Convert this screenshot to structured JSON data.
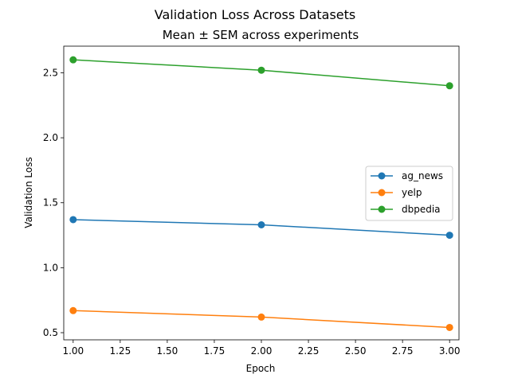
{
  "chart_data": {
    "type": "line",
    "title": "Validation Loss Across Datasets",
    "subtitle": "Mean ± SEM across experiments",
    "xlabel": "Epoch",
    "ylabel": "Validation Loss",
    "x": [
      1.0,
      2.0,
      3.0
    ],
    "xlim": [
      0.95,
      3.05
    ],
    "ylim": [
      0.445,
      2.705
    ],
    "xticks": [
      1.0,
      1.25,
      1.5,
      1.75,
      2.0,
      2.25,
      2.5,
      2.75,
      3.0
    ],
    "xtick_labels": [
      "1.00",
      "1.25",
      "1.50",
      "1.75",
      "2.00",
      "2.25",
      "2.50",
      "2.75",
      "3.00"
    ],
    "yticks": [
      0.5,
      1.0,
      1.5,
      2.0,
      2.5
    ],
    "ytick_labels": [
      "0.5",
      "1.0",
      "1.5",
      "2.0",
      "2.5"
    ],
    "grid": false,
    "legend_position": "center-right",
    "series": [
      {
        "name": "ag_news",
        "color": "#1f77b4",
        "values": [
          1.37,
          1.33,
          1.25
        ]
      },
      {
        "name": "yelp",
        "color": "#ff7f0e",
        "values": [
          0.67,
          0.62,
          0.54
        ]
      },
      {
        "name": "dbpedia",
        "color": "#2ca02c",
        "values": [
          2.6,
          2.52,
          2.4
        ]
      }
    ]
  }
}
